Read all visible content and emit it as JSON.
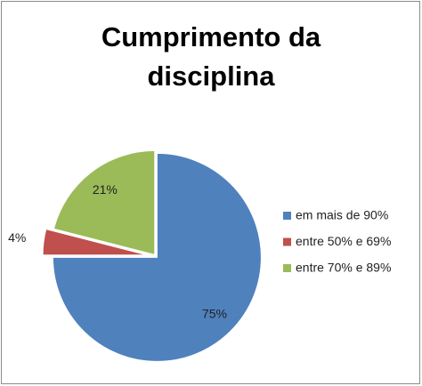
{
  "chart_data": {
    "type": "pie",
    "title": "Cumprimento da disciplina",
    "categories": [
      "em mais de 90%",
      "entre 50% e 69%",
      "entre 70% e 89%"
    ],
    "values": [
      75,
      4,
      21
    ],
    "value_labels": [
      "75%",
      "4%",
      "21%"
    ],
    "colors": [
      "#4f81bd",
      "#c0504d",
      "#9bbb59"
    ],
    "legend": "right"
  }
}
